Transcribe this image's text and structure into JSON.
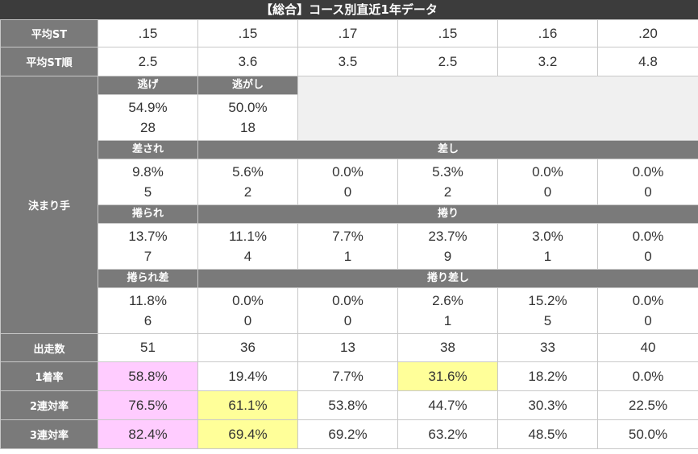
{
  "title": "【総合】コース別直近1年データ",
  "labels": {
    "avg_st": "平均ST",
    "avg_st_rank": "平均ST順",
    "kimarite": "決まり手",
    "starts": "出走数",
    "rate1": "1着率",
    "rate2": "2連対率",
    "rate3": "3連対率"
  },
  "avg_st": [
    ".15",
    ".15",
    ".17",
    ".15",
    ".16",
    ".20"
  ],
  "avg_st_rank": [
    "2.5",
    "3.6",
    "3.5",
    "2.5",
    "3.2",
    "4.8"
  ],
  "nige": {
    "label_lane1": "逃げ",
    "label_lane2": "逃がし",
    "lane1": {
      "pct": "54.9%",
      "count": "28"
    },
    "lane2": {
      "pct": "50.0%",
      "count": "18"
    }
  },
  "sashi": {
    "label_lane1": "差され",
    "label_other": "差し",
    "cells": [
      {
        "pct": "9.8%",
        "count": "5"
      },
      {
        "pct": "5.6%",
        "count": "2"
      },
      {
        "pct": "0.0%",
        "count": "0"
      },
      {
        "pct": "5.3%",
        "count": "2"
      },
      {
        "pct": "0.0%",
        "count": "0"
      },
      {
        "pct": "0.0%",
        "count": "0"
      }
    ]
  },
  "makuri": {
    "label_lane1": "捲られ",
    "label_other": "捲り",
    "cells": [
      {
        "pct": "13.7%",
        "count": "7"
      },
      {
        "pct": "11.1%",
        "count": "4"
      },
      {
        "pct": "7.7%",
        "count": "1"
      },
      {
        "pct": "23.7%",
        "count": "9"
      },
      {
        "pct": "3.0%",
        "count": "1"
      },
      {
        "pct": "0.0%",
        "count": "0"
      }
    ]
  },
  "makurizashi": {
    "label_lane1": "捲られ差",
    "label_other": "捲り差し",
    "cells": [
      {
        "pct": "11.8%",
        "count": "6"
      },
      {
        "pct": "0.0%",
        "count": "0"
      },
      {
        "pct": "0.0%",
        "count": "0"
      },
      {
        "pct": "2.6%",
        "count": "1"
      },
      {
        "pct": "15.2%",
        "count": "5"
      },
      {
        "pct": "0.0%",
        "count": "0"
      }
    ]
  },
  "starts": [
    "51",
    "36",
    "13",
    "38",
    "33",
    "40"
  ],
  "rate1": [
    "58.8%",
    "19.4%",
    "7.7%",
    "31.6%",
    "18.2%",
    "0.0%"
  ],
  "rate2": [
    "76.5%",
    "61.1%",
    "53.8%",
    "44.7%",
    "30.3%",
    "22.5%"
  ],
  "rate3": [
    "82.4%",
    "69.4%",
    "69.2%",
    "63.2%",
    "48.5%",
    "50.0%"
  ],
  "highlight_colors": {
    "best": "#ffccff",
    "second": "#ffff99"
  }
}
